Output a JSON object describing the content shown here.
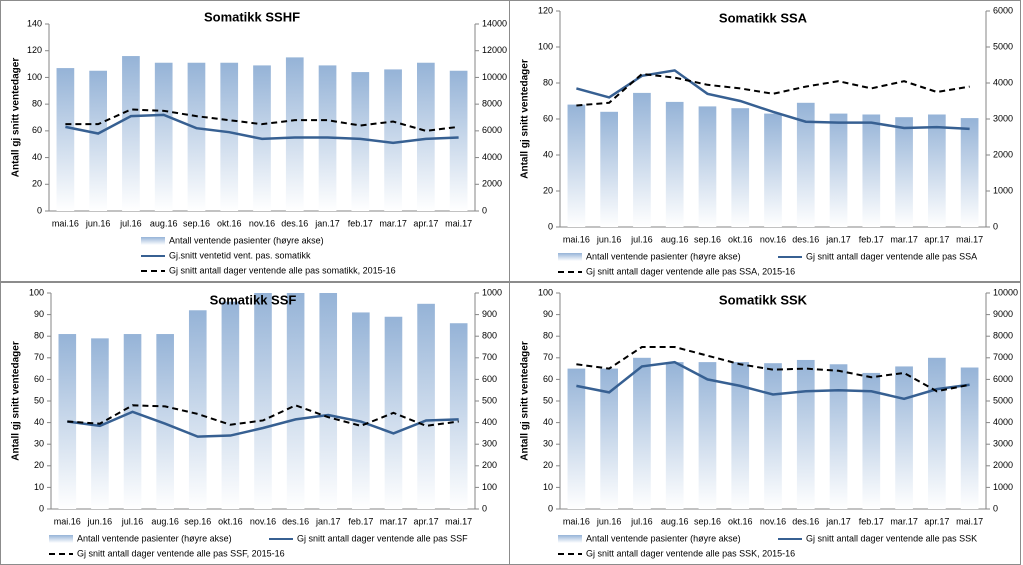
{
  "chart_data": [
    {
      "type": "combo",
      "title": "Somatikk SSHF",
      "y_label": "Antall gj snitt ventedager",
      "categories": [
        "mai.16",
        "jun.16",
        "jul.16",
        "aug.16",
        "sep.16",
        "okt.16",
        "nov.16",
        "des.16",
        "jan.17",
        "feb.17",
        "mar.17",
        "apr.17",
        "mai.17"
      ],
      "ylim": [
        0,
        140
      ],
      "yticks": [
        0,
        20,
        40,
        60,
        80,
        100,
        120,
        140
      ],
      "y2lim": [
        0,
        14000
      ],
      "y2ticks": [
        0,
        2000,
        4000,
        6000,
        8000,
        10000,
        12000,
        14000
      ],
      "series": [
        {
          "name": "Antall ventende pasienter (høyre akse)",
          "kind": "bar",
          "axis": "y2",
          "color": "#95b3d7",
          "values": [
            10700,
            10500,
            11600,
            11100,
            11100,
            11100,
            10900,
            11500,
            10900,
            10400,
            10600,
            11100,
            10500
          ]
        },
        {
          "name": "Gj.snitt ventetid vent. pas. somatikk",
          "kind": "line",
          "style": "solid",
          "color": "#376092",
          "values": [
            63,
            58,
            71,
            72,
            62,
            59,
            54,
            55,
            55,
            54,
            51,
            54,
            55
          ]
        },
        {
          "name": "Gj snitt antall dager ventende alle pas somatikk, 2015-16",
          "kind": "line",
          "style": "dashed",
          "color": "#000000",
          "values": [
            65,
            65,
            76,
            75,
            71,
            68,
            65,
            68,
            68,
            64,
            67,
            60,
            63
          ]
        }
      ]
    },
    {
      "type": "combo",
      "title": "Somatikk SSA",
      "y_label": "Antall gj snitt ventedager",
      "categories": [
        "mai.16",
        "jun.16",
        "jul.16",
        "aug.16",
        "sep.16",
        "okt.16",
        "nov.16",
        "des.16",
        "jan.17",
        "feb.17",
        "mar.17",
        "apr.17",
        "mai.17"
      ],
      "ylim": [
        0,
        120
      ],
      "yticks": [
        0,
        20,
        40,
        60,
        80,
        100,
        120
      ],
      "y2lim": [
        0,
        6000
      ],
      "y2ticks": [
        0,
        1000,
        2000,
        3000,
        4000,
        5000,
        6000
      ],
      "series": [
        {
          "name": "Antall ventende pasienter (høyre akse)",
          "kind": "bar",
          "axis": "y2",
          "color": "#95b3d7",
          "values": [
            3400,
            3200,
            3725,
            3475,
            3350,
            3300,
            3150,
            3450,
            3150,
            3125,
            3050,
            3125,
            3025
          ]
        },
        {
          "name": "Gj snitt antall dager ventende alle pas SSA",
          "kind": "line",
          "style": "solid",
          "color": "#376092",
          "values": [
            77,
            72,
            84,
            87,
            74,
            70,
            64,
            58.5,
            58,
            58,
            55,
            55.5,
            54.5
          ]
        },
        {
          "name": "Gj snitt antall dager ventende alle pas SSA, 2015-16",
          "kind": "line",
          "style": "dashed",
          "color": "#000000",
          "values": [
            67.5,
            69,
            85,
            83,
            79,
            77,
            74,
            78,
            81,
            77,
            81,
            75,
            78
          ]
        }
      ]
    },
    {
      "type": "combo",
      "title": "Somatikk SSF",
      "y_label": "Antall gj snitt ventedager",
      "categories": [
        "mai.16",
        "jun.16",
        "jul.16",
        "aug.16",
        "sep.16",
        "okt.16",
        "nov.16",
        "des.16",
        "jan.17",
        "feb.17",
        "mar.17",
        "apr.17",
        "mai.17"
      ],
      "ylim": [
        0,
        100
      ],
      "yticks": [
        0,
        10,
        20,
        30,
        40,
        50,
        60,
        70,
        80,
        90,
        100
      ],
      "y2lim": [
        0,
        1000
      ],
      "y2ticks": [
        0,
        100,
        200,
        300,
        400,
        500,
        600,
        700,
        800,
        900,
        1000
      ],
      "series": [
        {
          "name": "Antall ventende pasienter (høyre akse)",
          "kind": "bar",
          "axis": "y2",
          "color": "#95b3d7",
          "values": [
            810,
            790,
            810,
            810,
            920,
            960,
            1000,
            1000,
            1000,
            910,
            890,
            950,
            860
          ]
        },
        {
          "name": "Gj snitt antall dager ventende alle pas SSF",
          "kind": "line",
          "style": "solid",
          "color": "#376092",
          "values": [
            40.5,
            38.5,
            45,
            39.5,
            33.5,
            34,
            37.5,
            41.5,
            43.5,
            40.5,
            35,
            41,
            41.5
          ]
        },
        {
          "name": "Gj snitt antall dager ventende alle pas SSF, 2015-16",
          "kind": "line",
          "style": "dashed",
          "color": "#000000",
          "values": [
            40.5,
            39.5,
            48,
            47.5,
            44,
            39,
            41,
            48,
            42.5,
            38.5,
            44.5,
            38.5,
            40.5
          ]
        }
      ]
    },
    {
      "type": "combo",
      "title": "Somatikk SSK",
      "y_label": "Antall gj snitt ventedager",
      "categories": [
        "mai.16",
        "jun.16",
        "jul.16",
        "aug.16",
        "sep.16",
        "okt.16",
        "nov.16",
        "des.16",
        "jan.17",
        "feb.17",
        "mar.17",
        "apr.17",
        "mai.17"
      ],
      "ylim": [
        0,
        100
      ],
      "yticks": [
        0,
        10,
        20,
        30,
        40,
        50,
        60,
        70,
        80,
        90,
        100
      ],
      "y2lim": [
        0,
        10000
      ],
      "y2ticks": [
        0,
        1000,
        2000,
        3000,
        4000,
        5000,
        6000,
        7000,
        8000,
        9000,
        10000
      ],
      "series": [
        {
          "name": "Antall ventende pasienter (høyre akse)",
          "kind": "bar",
          "axis": "y2",
          "color": "#95b3d7",
          "values": [
            6500,
            6500,
            7000,
            6800,
            6800,
            6800,
            6750,
            6900,
            6700,
            6300,
            6600,
            7000,
            6550
          ]
        },
        {
          "name": "Gj snitt antall dager ventende alle pas SSK",
          "kind": "line",
          "style": "solid",
          "color": "#376092",
          "values": [
            57,
            54,
            66,
            68,
            60,
            57,
            53,
            54.5,
            55,
            54.5,
            51,
            55.5,
            57.5
          ]
        },
        {
          "name": "Gj snitt antall dager ventende alle pas SSK, 2015-16",
          "kind": "line",
          "style": "dashed",
          "color": "#000000",
          "values": [
            67,
            65,
            75,
            75,
            71,
            67,
            64.5,
            65,
            64,
            61,
            63,
            54.5,
            57.5
          ]
        }
      ]
    }
  ]
}
